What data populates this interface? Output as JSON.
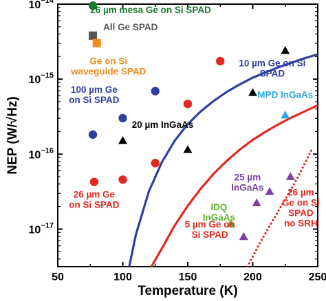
{
  "chart_data": {
    "type": "scatter",
    "xlabel": "Temperature (K)",
    "ylabel": "NEP (W/√Hz)",
    "xlim": [
      50,
      250
    ],
    "ylim_log10": [
      -17.5,
      -14
    ],
    "yscale": "log",
    "x_ticks": [
      {
        "value": 50,
        "label": "50"
      },
      {
        "value": 100,
        "label": "100"
      },
      {
        "value": 150,
        "label": "150"
      },
      {
        "value": 200,
        "label": "200"
      },
      {
        "value": 250,
        "label": "250"
      }
    ],
    "y_ticks": [
      {
        "exp": -14,
        "base": "10",
        "sup": "−14"
      },
      {
        "exp": -15,
        "base": "10",
        "sup": "−15"
      },
      {
        "exp": -16,
        "base": "10",
        "sup": "−16"
      },
      {
        "exp": -17,
        "base": "10",
        "sup": "−17"
      }
    ],
    "series": [
      {
        "key": "mesa_ge_si",
        "marker": "circle",
        "color": "#1a7a2e",
        "points": [
          {
            "x": 77,
            "y_log10": -14.02
          }
        ]
      },
      {
        "key": "all_ge",
        "marker": "square",
        "color": "#555555",
        "points": [
          {
            "x": 77,
            "y_log10": -14.42
          }
        ]
      },
      {
        "key": "ge_si_waveguide",
        "marker": "square",
        "color": "#f28c1e",
        "points": [
          {
            "x": 80,
            "y_log10": -14.52
          }
        ]
      },
      {
        "key": "ge_100um",
        "marker": "circle",
        "color": "#2e3f9e",
        "points": [
          {
            "x": 77,
            "y_log10": -15.74
          },
          {
            "x": 100,
            "y_log10": -15.52
          },
          {
            "x": 125,
            "y_log10": -15.16
          }
        ]
      },
      {
        "key": "ge_26um",
        "marker": "circle",
        "color": "#e42820",
        "points": [
          {
            "x": 78,
            "y_log10": -16.37
          },
          {
            "x": 100,
            "y_log10": -16.34
          },
          {
            "x": 125,
            "y_log10": -16.12
          },
          {
            "x": 150,
            "y_log10": -15.33
          },
          {
            "x": 175,
            "y_log10": -14.76
          }
        ]
      },
      {
        "key": "ingaas_20um",
        "marker": "triangle",
        "color": "#000000",
        "points": [
          {
            "x": 100,
            "y_log10": -15.82
          },
          {
            "x": 150,
            "y_log10": -15.94
          },
          {
            "x": 200,
            "y_log10": -15.18
          },
          {
            "x": 225,
            "y_log10": -14.62
          }
        ]
      },
      {
        "key": "mpd_ingaas",
        "marker": "triangle",
        "color": "#28a8e0",
        "points": [
          {
            "x": 225,
            "y_log10": -15.48
          }
        ]
      },
      {
        "key": "ingaas_25um",
        "marker": "triangle",
        "color": "#7a3fa0",
        "points": [
          {
            "x": 193,
            "y_log10": -17.1
          },
          {
            "x": 203,
            "y_log10": -16.65
          },
          {
            "x": 213,
            "y_log10": -16.5
          },
          {
            "x": 229,
            "y_log10": -16.3
          }
        ]
      },
      {
        "key": "idq_ingaas",
        "marker": "triangle",
        "color": "#5fb52a",
        "points": [
          {
            "x": 183,
            "y_log10": -16.93
          }
        ]
      }
    ],
    "curves": [
      {
        "key": "model_10um",
        "style": "solid",
        "color": "#2e3f9e",
        "points": [
          [
            105,
            -17.5
          ],
          [
            110,
            -17.08
          ],
          [
            120,
            -16.5
          ],
          [
            130,
            -16.11
          ],
          [
            140,
            -15.82
          ],
          [
            150,
            -15.6
          ],
          [
            160,
            -15.43
          ],
          [
            170,
            -15.29
          ],
          [
            180,
            -15.17
          ],
          [
            190,
            -15.07
          ],
          [
            200,
            -14.98
          ],
          [
            210,
            -14.91
          ],
          [
            220,
            -14.84
          ],
          [
            230,
            -14.78
          ],
          [
            240,
            -14.72
          ],
          [
            250,
            -14.67
          ]
        ]
      },
      {
        "key": "model_5um",
        "style": "solid",
        "color": "#e42820",
        "points": [
          [
            122,
            -17.5
          ],
          [
            130,
            -17.26
          ],
          [
            140,
            -16.95
          ],
          [
            150,
            -16.69
          ],
          [
            160,
            -16.46
          ],
          [
            170,
            -16.26
          ],
          [
            180,
            -16.09
          ],
          [
            190,
            -15.94
          ],
          [
            200,
            -15.81
          ],
          [
            210,
            -15.7
          ],
          [
            220,
            -15.6
          ],
          [
            230,
            -15.51
          ],
          [
            240,
            -15.43
          ],
          [
            250,
            -15.35
          ]
        ]
      },
      {
        "key": "model_26um_no_srh",
        "style": "dotted",
        "color": "#e42820",
        "points": [
          [
            196,
            -17.5
          ],
          [
            205,
            -17.2
          ],
          [
            215,
            -16.9
          ],
          [
            225,
            -16.6
          ],
          [
            235,
            -16.3
          ],
          [
            245,
            -15.95
          ]
        ]
      }
    ],
    "annotations": [
      {
        "key": "mesa",
        "lines": [
          "26 µm mesa Ge on Si SPAD"
        ],
        "color": "#1a7a2e",
        "x": 75,
        "y_log10": -14.12,
        "anchor": "start"
      },
      {
        "key": "allge",
        "lines": [
          "All Ge SPAD"
        ],
        "color": "#555555",
        "x": 85,
        "y_log10": -14.35,
        "anchor": "start"
      },
      {
        "key": "waveguide",
        "lines": [
          "Ge on Si",
          "waveguide SPAD"
        ],
        "color": "#f28c1e",
        "x": 89,
        "y_log10": -14.8,
        "anchor": "middle"
      },
      {
        "key": "ge10",
        "lines": [
          "10 µm Ge on Si",
          "SPAD"
        ],
        "color": "#2e3f9e",
        "x": 215,
        "y_log10": -14.83,
        "anchor": "middle"
      },
      {
        "key": "ge100",
        "lines": [
          "100 µm Ge",
          "on Si SPAD"
        ],
        "color": "#2e3f9e",
        "x": 78,
        "y_log10": -15.18,
        "anchor": "middle"
      },
      {
        "key": "mpd",
        "lines": [
          "MPD InGaAs"
        ],
        "color": "#28a8e0",
        "x": 225,
        "y_log10": -15.25,
        "anchor": "middle"
      },
      {
        "key": "ingaas20",
        "lines": [
          "20 µm InGaAs"
        ],
        "color": "#000000",
        "x": 107,
        "y_log10": -15.65,
        "anchor": "start"
      },
      {
        "key": "ge26",
        "lines": [
          "26 µm Ge",
          "on Si SPAD"
        ],
        "color": "#e42820",
        "x": 78,
        "y_log10": -16.58,
        "anchor": "middle"
      },
      {
        "key": "ingaas25",
        "lines": [
          "25 µm",
          "InGaAs"
        ],
        "color": "#7a3fa0",
        "x": 196,
        "y_log10": -16.35,
        "anchor": "middle"
      },
      {
        "key": "idq",
        "lines": [
          "IDQ",
          "InGaAs"
        ],
        "color": "#5fb52a",
        "x": 174,
        "y_log10": -16.75,
        "anchor": "middle"
      },
      {
        "key": "ge5",
        "lines": [
          "5 µm Ge on",
          "Si SPAD"
        ],
        "color": "#e42820",
        "x": 167,
        "y_log10": -16.98,
        "anchor": "middle"
      },
      {
        "key": "nosrh",
        "lines": [
          "26 µm",
          "Ge on Si",
          "SPAD",
          "no SRH"
        ],
        "color": "#e42820",
        "x": 237,
        "y_log10": -16.55,
        "anchor": "middle"
      }
    ]
  }
}
